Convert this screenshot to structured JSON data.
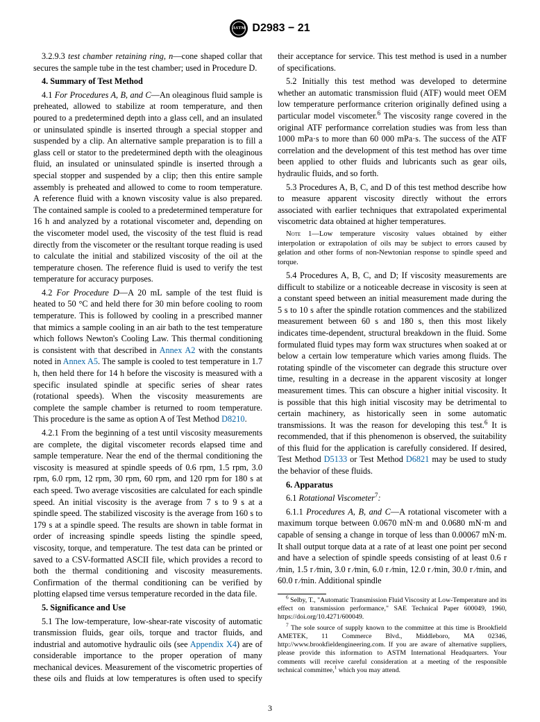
{
  "header": {
    "doc_id": "D2983 − 21",
    "logo_text": "ASTM"
  },
  "page_number": "3",
  "left": {
    "p3293": "3.2.9.3 test chamber retaining ring, n—cone shaped collar that secures the sample tube in the test chamber; used in Procedure D.",
    "sec4_head": "4. Summary of Test Method",
    "p41": "4.1 For Procedures A, B, and C—An oleaginous fluid sample is preheated, allowed to stabilize at room temperature, and then poured to a predetermined depth into a glass cell, and an insulated or uninsulated spindle is inserted through a special stopper and suspended by a clip. An alternative sample preparation is to fill a glass cell or stator to the predetermined depth with the oleaginous fluid, an insulated or uninsulated spindle is inserted through a special stopper and suspended by a clip; then this entire sample assembly is preheated and allowed to come to room temperature. A reference fluid with a known viscosity value is also prepared. The contained sample is cooled to a predetermined temperature for 16 h and analyzed by a rotational viscometer and, depending on the viscometer model used, the viscosity of the test fluid is read directly from the viscometer or the resultant torque reading is used to calculate the initial and stabilized viscosity of the oil at the temperature chosen. The reference fluid is used to verify the test temperature for accuracy purposes.",
    "p42_a": "4.2 For Procedure D—A 20 mL sample of the test fluid is heated to 50 °C and held there for 30 min before cooling to room temperature. This is followed by cooling in a prescribed manner that mimics a sample cooling in an air bath to the test temperature which follows Newton's Cooling Law. This thermal conditioning is consistent with that described in ",
    "p42_link1": "Annex A2",
    "p42_b": " with the constants noted in ",
    "p42_link2": "Annex A5",
    "p42_c": ". The sample is cooled to test temperature in 1.7 h, then held there for 14 h before the viscosity is measured with a specific insulated spindle at specific series of shear rates (rotational speeds). When the viscosity measurements are complete the sample chamber is returned to room temperature. This procedure is the same as option A of Test Method ",
    "p42_link3": "D8210",
    "p42_d": ".",
    "p421": "4.2.1 From the beginning of a test until viscosity measurements are complete, the digital viscometer records elapsed time and sample temperature. Near the end of the thermal conditioning the viscosity is measured at spindle speeds of 0.6 rpm, 1.5 rpm, 3.0 rpm, 6.0 rpm, 12 rpm, 30 rpm, 60 rpm, and 120 rpm for 180 s at each speed. Two average viscosities are calculated for each spindle speed. An initial viscosity is the average from 7 s to 9 s at a spindle speed. The stabilized viscosity is the average from 160 s to 179 s at a spindle speed. The results are shown in table format in order of increasing spindle speeds listing the spindle speed, viscosity, torque, and temperature. The test data can be printed or saved to a CSV-formatted ASCII file, which provides a record to both the thermal conditioning and viscosity measurements. Confirmation of the thermal conditioning can be verified by plotting elapsed time versus temperature recorded in the data file.",
    "sec5_head": "5. Significance and Use",
    "p51_a": "5.1 The low-temperature, low-shear-rate viscosity of automatic transmission fluids, gear oils, torque and tractor fluids, and industrial and automotive hydraulic oils (see ",
    "p51_link": "Appendix X4",
    "p51_b": ") are of considerable importance to the proper operation of"
  },
  "right": {
    "p51_cont": "many mechanical devices. Measurement of the viscometric properties of these oils and fluids at low temperatures is often used to specify their acceptance for service. This test method is used in a number of specifications.",
    "p52": "5.2 Initially this test method was developed to determine whether an automatic transmission fluid (ATF) would meet OEM low temperature performance criterion originally defined using a particular model viscometer.6 The viscosity range covered in the original ATF performance correlation studies was from less than 1000 mPa·s to more than 60 000 mPa·s. The success of the ATF correlation and the development of this test method has over time been applied to other fluids and lubricants such as gear oils, hydraulic fluids, and so forth.",
    "p53": "5.3 Procedures A, B, C, and D of this test method describe how to measure apparent viscosity directly without the errors associated with earlier techniques that extrapolated experimental viscometric data obtained at higher temperatures.",
    "note1": "Note 1—Low temperature viscosity values obtained by either interpolation or extrapolation of oils may be subject to errors caused by gelation and other forms of non-Newtonian response to spindle speed and torque.",
    "p54_a": "5.4 Procedures A, B, C, and D; If viscosity measurements are difficult to stabilize or a noticeable decrease in viscosity is seen at a constant speed between an initial measurement made during the 5 s to 10 s after the spindle rotation commences and the stabilized measurement between 60 s and 180 s, then this most likely indicates time-dependent, structural breakdown in the fluid. Some formulated fluid types may form wax structures when soaked at or below a certain low temperature which varies among fluids. The rotating spindle of the viscometer can degrade this structure over time, resulting in a decrease in the apparent viscosity at longer measurement times. This can obscure a higher initial viscosity. It is possible that this high initial viscosity may be detrimental to certain machinery, as historically seen in some automatic transmissions. It was the reason for developing this test.6 It is recommended, that if this phenomenon is observed, the suitability of this fluid for the application is carefully considered. If desired, Test Method ",
    "p54_link1": "D5133",
    "p54_b": " or Test Method ",
    "p54_link2": "D6821",
    "p54_c": " may be used to study the behavior of these fluids.",
    "sec6_head": "6. Apparatus",
    "p61": "6.1 Rotational Viscometer7:",
    "p611": "6.1.1 Procedures A, B, and C—A rotational viscometer with a maximum torque between 0.0670 mN·m and 0.0680 mN·m and capable of sensing a change in torque of less than 0.00067 mN·m. It shall output torque data at a rate of at least one point per second and have a selection of spindle speeds consisting of at least 0.6 r ⁄min, 1.5 r ⁄min, 3.0 r ⁄min, 6.0 r ⁄min, 12.0 r ⁄min, 30.0 r ⁄min, and 60.0 r ⁄min. Additional spindle",
    "fn6": "6 Selby, T., \"Automatic Transmission Fluid Viscosity at Low-Temperature and its effect on transmission performance,\" SAE Technical Paper 600049, 1960, https://doi.org/10.4271/600049.",
    "fn7": "7 The sole source of supply known to the committee at this time is Brookfield AMETEK, 11 Commerce Blvd., Middleboro, MA 02346, http://www.brookfieldengineering.com. If you are aware of alternative suppliers, please provide this information to ASTM International Headquarters. Your comments will receive careful consideration at a meeting of the responsible technical committee,1 which you may attend."
  }
}
